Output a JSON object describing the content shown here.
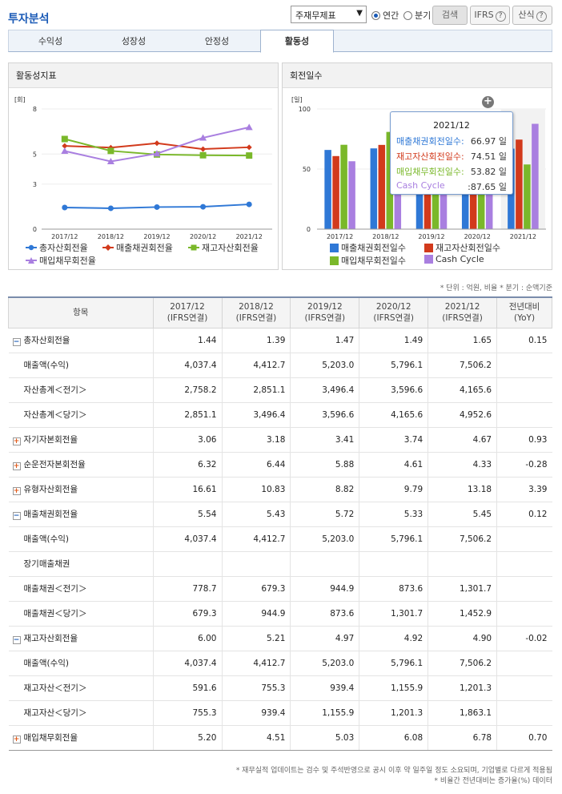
{
  "header": {
    "title": "투자분석",
    "select_value": "주재무제표",
    "radio_annual": "연간",
    "radio_quarter": "분기",
    "search_label": "검색",
    "ifrs_label": "IFRS",
    "formula_label": "산식"
  },
  "tabs": [
    "수익성",
    "성장성",
    "안정성",
    "활동성"
  ],
  "active_tab": 3,
  "left_panel": {
    "title": "활동성지표",
    "unit": "[회]",
    "yticks": [
      "8",
      "5",
      "3",
      "0"
    ],
    "legend": [
      "총자산회전율",
      "매출채권회전율",
      "재고자산회전율",
      "매입채무회전율"
    ]
  },
  "right_panel": {
    "title": "회전일수",
    "unit": "[일]",
    "yticks": [
      "100",
      "50",
      "0"
    ],
    "legend": [
      "매출채권회전일수",
      "재고자산회전일수",
      "매입채무회전일수",
      "Cash Cycle"
    ]
  },
  "tooltip": {
    "title": "2021/12",
    "rows": [
      {
        "label": "매출채권회전일수:",
        "value": "66.97 일",
        "color": "#2f78d6"
      },
      {
        "label": "재고자산회전일수:",
        "value": "74.51 일",
        "color": "#d23a1c"
      },
      {
        "label": "매입채무회전일수:",
        "value": "53.82 일",
        "color": "#7ab82a"
      },
      {
        "label": "Cash Cycle",
        "value": ":87.65 일",
        "color": "#a97fe0"
      }
    ]
  },
  "chart_data": [
    {
      "type": "line",
      "title": "활동성지표",
      "ylabel": "[회]",
      "ylim": [
        0,
        8
      ],
      "yticks": [
        0,
        3,
        5,
        8
      ],
      "categories": [
        "2017/12",
        "2018/12",
        "2019/12",
        "2020/12",
        "2021/12"
      ],
      "series": [
        {
          "name": "총자산회전율",
          "color": "#2f78d6",
          "marker": "circle",
          "values": [
            1.44,
            1.39,
            1.47,
            1.49,
            1.65
          ]
        },
        {
          "name": "매출채권회전율",
          "color": "#d23a1c",
          "marker": "diamond",
          "values": [
            5.54,
            5.43,
            5.72,
            5.33,
            5.45
          ]
        },
        {
          "name": "재고자산회전율",
          "color": "#7ab82a",
          "marker": "square",
          "values": [
            6.0,
            5.21,
            4.97,
            4.92,
            4.9
          ]
        },
        {
          "name": "매입채무회전율",
          "color": "#a97fe0",
          "marker": "triangle",
          "values": [
            5.2,
            4.51,
            5.03,
            6.08,
            6.78
          ]
        }
      ]
    },
    {
      "type": "bar",
      "title": "회전일수",
      "ylabel": "[일]",
      "ylim": [
        0,
        100
      ],
      "yticks": [
        0,
        50,
        100
      ],
      "categories": [
        "2017/12",
        "2018/12",
        "2019/12",
        "2020/12",
        "2021/12"
      ],
      "series": [
        {
          "name": "매출채권회전일수",
          "color": "#2f78d6",
          "values": [
            65.9,
            67.2,
            63.8,
            68.5,
            66.97
          ]
        },
        {
          "name": "재고자산회전일수",
          "color": "#d23a1c",
          "values": [
            60.8,
            70.1,
            73.4,
            74.2,
            74.51
          ]
        },
        {
          "name": "매입채무회전일수",
          "color": "#7ab82a",
          "values": [
            70.2,
            80.9,
            72.6,
            60.0,
            53.82
          ]
        },
        {
          "name": "Cash Cycle",
          "color": "#a97fe0",
          "values": [
            56.5,
            56.4,
            64.6,
            82.7,
            87.65
          ]
        }
      ]
    }
  ],
  "notes": {
    "unit_note": "* 단위 : 억원, 비율   * 분기 : 순액기준",
    "footer1": "* 재무실적 업데이트는 검수 및 주석반영으로 공시 이후 약 일주일 정도 소요되며, 기업별로 다르게 적용됨",
    "footer2": "* 비율간 전년대비는 증가율(%) 데이터"
  },
  "table": {
    "headers": [
      "항목",
      "2017/12\n(IFRS연결)",
      "2018/12\n(IFRS연결)",
      "2019/12\n(IFRS연결)",
      "2020/12\n(IFRS연결)",
      "2021/12\n(IFRS연결)",
      "전년대비\n(YoY)"
    ],
    "rows": [
      {
        "label": "총자산회전율",
        "type": "minus",
        "cells": [
          "1.44",
          "1.39",
          "1.47",
          "1.49",
          "1.65",
          "0.15"
        ]
      },
      {
        "label": "매출액(수익)",
        "type": "sub",
        "cells": [
          "4,037.4",
          "4,412.7",
          "5,203.0",
          "5,796.1",
          "7,506.2",
          ""
        ]
      },
      {
        "label": "자산총계＜전기＞",
        "type": "sub",
        "cells": [
          "2,758.2",
          "2,851.1",
          "3,496.4",
          "3,596.6",
          "4,165.6",
          ""
        ]
      },
      {
        "label": "자산총계＜당기＞",
        "type": "sub",
        "cells": [
          "2,851.1",
          "3,496.4",
          "3,596.6",
          "4,165.6",
          "4,952.6",
          ""
        ]
      },
      {
        "label": "자기자본회전율",
        "type": "plus",
        "cells": [
          "3.06",
          "3.18",
          "3.41",
          "3.74",
          "4.67",
          "0.93"
        ]
      },
      {
        "label": "순운전자본회전율",
        "type": "plus",
        "cells": [
          "6.32",
          "6.44",
          "5.88",
          "4.61",
          "4.33",
          "-0.28"
        ]
      },
      {
        "label": "유형자산회전율",
        "type": "plus",
        "cells": [
          "16.61",
          "10.83",
          "8.82",
          "9.79",
          "13.18",
          "3.39"
        ]
      },
      {
        "label": "매출채권회전율",
        "type": "minus",
        "cells": [
          "5.54",
          "5.43",
          "5.72",
          "5.33",
          "5.45",
          "0.12"
        ]
      },
      {
        "label": "매출액(수익)",
        "type": "sub",
        "cells": [
          "4,037.4",
          "4,412.7",
          "5,203.0",
          "5,796.1",
          "7,506.2",
          ""
        ]
      },
      {
        "label": "장기매출채권",
        "type": "sub",
        "cells": [
          "",
          "",
          "",
          "",
          "",
          ""
        ]
      },
      {
        "label": "매출채권＜전기＞",
        "type": "sub",
        "cells": [
          "778.7",
          "679.3",
          "944.9",
          "873.6",
          "1,301.7",
          ""
        ]
      },
      {
        "label": "매출채권＜당기＞",
        "type": "sub",
        "cells": [
          "679.3",
          "944.9",
          "873.6",
          "1,301.7",
          "1,452.9",
          ""
        ]
      },
      {
        "label": "재고자산회전율",
        "type": "minus",
        "cells": [
          "6.00",
          "5.21",
          "4.97",
          "4.92",
          "4.90",
          "-0.02"
        ]
      },
      {
        "label": "매출액(수익)",
        "type": "sub",
        "cells": [
          "4,037.4",
          "4,412.7",
          "5,203.0",
          "5,796.1",
          "7,506.2",
          ""
        ]
      },
      {
        "label": "재고자산＜전기＞",
        "type": "sub",
        "cells": [
          "591.6",
          "755.3",
          "939.4",
          "1,155.9",
          "1,201.3",
          ""
        ]
      },
      {
        "label": "재고자산＜당기＞",
        "type": "sub",
        "cells": [
          "755.3",
          "939.4",
          "1,155.9",
          "1,201.3",
          "1,863.1",
          ""
        ]
      },
      {
        "label": "매입채무회전율",
        "type": "plus",
        "cells": [
          "5.20",
          "4.51",
          "5.03",
          "6.08",
          "6.78",
          "0.70"
        ]
      }
    ]
  }
}
